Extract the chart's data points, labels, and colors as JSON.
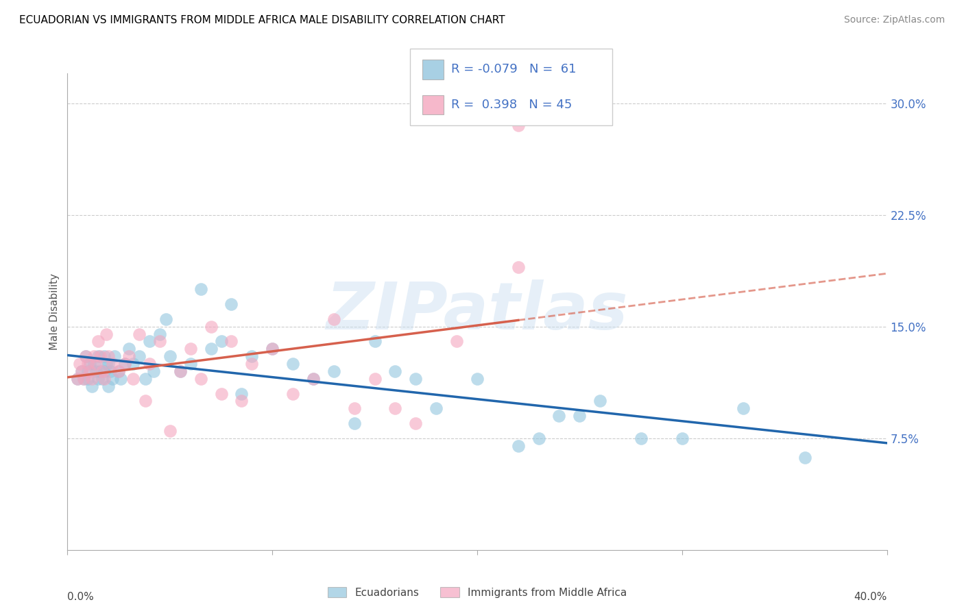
{
  "title": "ECUADORIAN VS IMMIGRANTS FROM MIDDLE AFRICA MALE DISABILITY CORRELATION CHART",
  "source": "Source: ZipAtlas.com",
  "ylabel": "Male Disability",
  "yticks": [
    0.075,
    0.15,
    0.225,
    0.3
  ],
  "ytick_labels": [
    "7.5%",
    "15.0%",
    "22.5%",
    "30.0%"
  ],
  "xlim": [
    0.0,
    0.4
  ],
  "ylim": [
    0.0,
    0.32
  ],
  "R_ecu": "-0.079",
  "N_ecu": "61",
  "R_imm": "0.398",
  "N_imm": "45",
  "blue_scatter": "#92c5de",
  "pink_scatter": "#f4a6bf",
  "blue_line": "#2166ac",
  "pink_line": "#d6604d",
  "blue_text": "#4472c4",
  "pink_text": "#d04070",
  "label_ecu": "Ecuadorians",
  "label_imm": "Immigrants from Middle Africa",
  "watermark": "ZIPatlas",
  "ecu_x": [
    0.005,
    0.007,
    0.008,
    0.009,
    0.01,
    0.01,
    0.011,
    0.012,
    0.013,
    0.014,
    0.015,
    0.015,
    0.016,
    0.017,
    0.018,
    0.018,
    0.019,
    0.02,
    0.02,
    0.021,
    0.022,
    0.023,
    0.025,
    0.026,
    0.028,
    0.03,
    0.032,
    0.035,
    0.038,
    0.04,
    0.042,
    0.045,
    0.048,
    0.05,
    0.055,
    0.06,
    0.065,
    0.07,
    0.075,
    0.08,
    0.085,
    0.09,
    0.1,
    0.11,
    0.12,
    0.13,
    0.14,
    0.16,
    0.18,
    0.2,
    0.22,
    0.24,
    0.26,
    0.28,
    0.3,
    0.33,
    0.36,
    0.15,
    0.17,
    0.23,
    0.25
  ],
  "ecu_y": [
    0.115,
    0.12,
    0.115,
    0.13,
    0.115,
    0.12,
    0.125,
    0.11,
    0.125,
    0.12,
    0.13,
    0.115,
    0.12,
    0.115,
    0.13,
    0.12,
    0.125,
    0.11,
    0.125,
    0.12,
    0.115,
    0.13,
    0.12,
    0.115,
    0.125,
    0.135,
    0.125,
    0.13,
    0.115,
    0.14,
    0.12,
    0.145,
    0.155,
    0.13,
    0.12,
    0.125,
    0.175,
    0.135,
    0.14,
    0.165,
    0.105,
    0.13,
    0.135,
    0.125,
    0.115,
    0.12,
    0.085,
    0.12,
    0.095,
    0.115,
    0.07,
    0.09,
    0.1,
    0.075,
    0.075,
    0.095,
    0.062,
    0.14,
    0.115,
    0.075,
    0.09
  ],
  "imm_x": [
    0.005,
    0.006,
    0.007,
    0.008,
    0.009,
    0.01,
    0.011,
    0.012,
    0.013,
    0.014,
    0.015,
    0.016,
    0.017,
    0.018,
    0.019,
    0.02,
    0.022,
    0.025,
    0.028,
    0.03,
    0.032,
    0.035,
    0.038,
    0.04,
    0.045,
    0.05,
    0.055,
    0.06,
    0.065,
    0.07,
    0.075,
    0.08,
    0.085,
    0.09,
    0.1,
    0.11,
    0.12,
    0.13,
    0.14,
    0.15,
    0.16,
    0.17,
    0.19,
    0.22,
    0.22
  ],
  "imm_y": [
    0.115,
    0.125,
    0.12,
    0.115,
    0.13,
    0.125,
    0.12,
    0.115,
    0.13,
    0.125,
    0.14,
    0.13,
    0.12,
    0.115,
    0.145,
    0.13,
    0.125,
    0.12,
    0.125,
    0.13,
    0.115,
    0.145,
    0.1,
    0.125,
    0.14,
    0.08,
    0.12,
    0.135,
    0.115,
    0.15,
    0.105,
    0.14,
    0.1,
    0.125,
    0.135,
    0.105,
    0.115,
    0.155,
    0.095,
    0.115,
    0.095,
    0.085,
    0.14,
    0.19,
    0.285
  ]
}
